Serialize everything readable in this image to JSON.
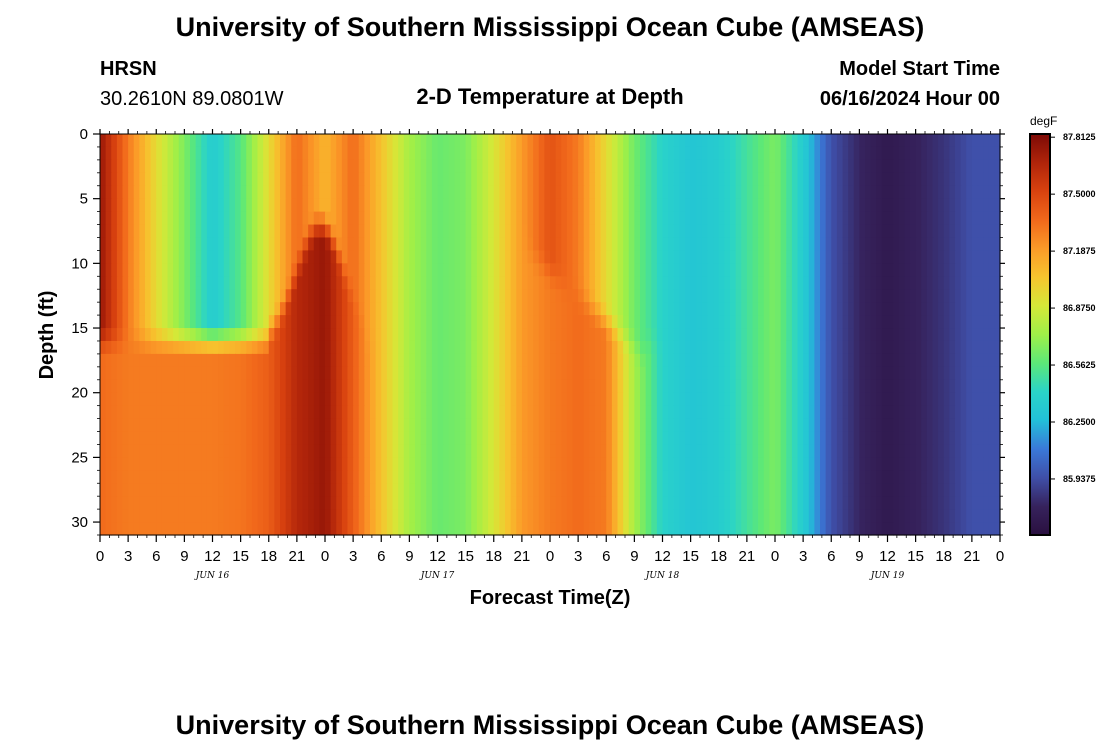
{
  "header": {
    "title": "University of Southern Mississippi Ocean Cube (AMSEAS)",
    "station": "HRSN",
    "location": "30.2610N  89.0801W",
    "subtitle": "2-D Temperature at Depth",
    "model_start_label": "Model Start Time",
    "model_start_value": "06/16/2024 Hour 00"
  },
  "footer": {
    "title": "University of Southern Mississippi Ocean Cube (AMSEAS)"
  },
  "colorbar": {
    "unit": "degF",
    "tick_labels": [
      "87.8125",
      "87.5000",
      "87.1875",
      "86.8750",
      "86.5625",
      "86.2500",
      "85.9375"
    ],
    "tick_values": [
      87.8125,
      87.5,
      87.1875,
      86.875,
      86.5625,
      86.25,
      85.9375
    ],
    "range": [
      85.63,
      87.83
    ],
    "colors": [
      "#2a1040",
      "#36225c",
      "#3f4fa8",
      "#3a78d8",
      "#22c0d8",
      "#2ad4c8",
      "#5ce878",
      "#9fef48",
      "#d5e838",
      "#f6c52e",
      "#fb9a28",
      "#f1681b",
      "#d8420f",
      "#b0240a",
      "#7d0a06"
    ]
  },
  "chart_data": {
    "type": "heatmap",
    "title": "2-D Temperature at Depth",
    "xlabel": "Forecast Time(Z)",
    "ylabel": "Depth (ft)",
    "x_unit": "hours since 06/16/2024 00Z",
    "xlim": [
      0,
      96
    ],
    "ylim": [
      0,
      31
    ],
    "y_inverted": true,
    "x_tick_values": [
      0,
      3,
      6,
      9,
      12,
      15,
      18,
      21,
      24,
      27,
      30,
      33,
      36,
      39,
      42,
      45,
      48,
      51,
      54,
      57,
      60,
      63,
      66,
      69,
      72,
      75,
      78,
      81,
      84,
      87,
      90,
      93,
      96
    ],
    "x_tick_labels": [
      "0",
      "3",
      "6",
      "9",
      "12",
      "15",
      "18",
      "21",
      "0",
      "3",
      "6",
      "9",
      "12",
      "15",
      "18",
      "21",
      "0",
      "3",
      "6",
      "9",
      "12",
      "15",
      "18",
      "21",
      "0",
      "3",
      "6",
      "9",
      "12",
      "15",
      "18",
      "21",
      "0"
    ],
    "y_tick_values": [
      0,
      5,
      10,
      15,
      20,
      25,
      30
    ],
    "y_tick_labels": [
      "0",
      "5",
      "10",
      "15",
      "20",
      "25",
      "30"
    ],
    "day_labels": [
      {
        "hour": 12,
        "label": "JUN 16"
      },
      {
        "hour": 36,
        "label": "JUN 17"
      },
      {
        "hour": 60,
        "label": "JUN 18"
      },
      {
        "hour": 84,
        "label": "JUN 19"
      }
    ],
    "value_unit": "degF",
    "depths_ft": [
      0,
      1,
      2,
      3,
      4,
      5,
      6,
      7,
      8,
      9,
      10,
      11,
      12,
      13,
      14,
      15,
      16,
      17,
      18,
      19,
      20,
      21,
      22,
      23,
      24,
      25,
      26,
      27,
      28,
      29,
      30
    ],
    "hours": [
      0,
      3,
      6,
      9,
      12,
      15,
      18,
      21,
      24,
      27,
      30,
      33,
      36,
      39,
      42,
      45,
      48,
      51,
      54,
      57,
      60,
      63,
      66,
      69,
      72,
      75,
      78,
      81,
      84,
      87,
      90,
      93,
      96
    ],
    "upper_layer_profile": [
      87.75,
      87.3,
      86.95,
      86.65,
      86.35,
      86.55,
      86.95,
      87.35,
      87.1,
      87.35,
      87.05,
      86.75,
      86.6,
      86.65,
      86.9,
      87.2,
      87.45,
      87.3,
      86.95,
      86.62,
      86.4,
      86.3,
      86.35,
      86.5,
      86.65,
      86.35,
      85.95,
      85.8,
      85.72,
      85.78,
      85.85,
      85.95,
      85.95
    ],
    "lower_layer_profile": [
      87.35,
      87.3,
      87.3,
      87.3,
      87.3,
      87.32,
      87.4,
      87.65,
      87.75,
      87.4,
      87.05,
      86.75,
      86.6,
      86.65,
      86.9,
      87.2,
      87.3,
      87.35,
      87.3,
      86.75,
      86.4,
      86.3,
      86.35,
      86.5,
      86.65,
      86.35,
      85.95,
      85.8,
      85.72,
      85.78,
      85.85,
      85.95,
      85.95
    ]
  }
}
